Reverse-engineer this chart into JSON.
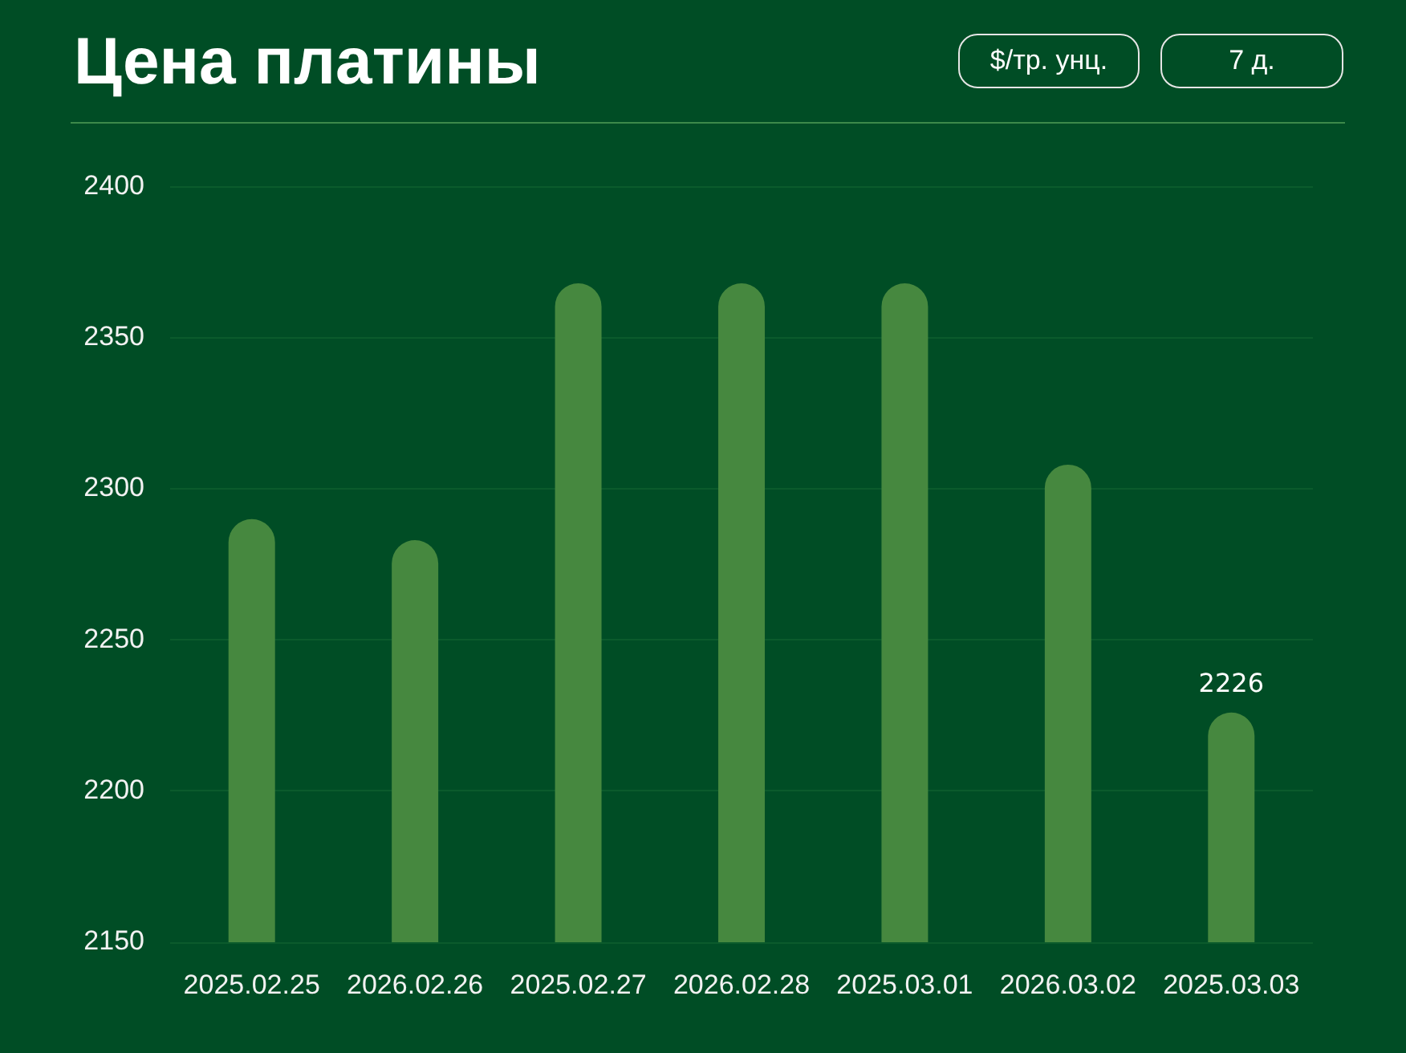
{
  "chart_data": {
    "type": "bar",
    "title": "Цена платины",
    "annotations": [
      "$/тр. унц.",
      "7 д."
    ],
    "categories": [
      "2025.02.25",
      "2026.02.26",
      "2025.02.27",
      "2026.02.28",
      "2025.03.01",
      "2026.03.02",
      "2025.03.03"
    ],
    "values": [
      2290,
      2283,
      2368,
      2368,
      2368,
      2308,
      2226
    ],
    "value_labels": [
      null,
      null,
      null,
      null,
      null,
      null,
      "2226"
    ],
    "color": "#46883f",
    "ylim": [
      2150,
      2400
    ],
    "yticks": [
      2150,
      2200,
      2250,
      2300,
      2350,
      2400
    ],
    "grid": "y"
  }
}
